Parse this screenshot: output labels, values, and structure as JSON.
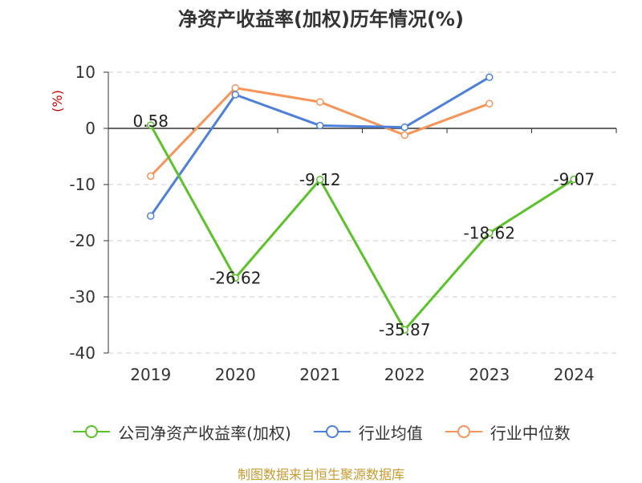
{
  "chart_data": {
    "type": "line",
    "title": "净资产收益率(加权)历年情况(%)",
    "ylabel": "(%)",
    "categories": [
      "2019",
      "2020",
      "2021",
      "2022",
      "2023",
      "2024"
    ],
    "ylim": [
      -40,
      10
    ],
    "yticks": [
      10,
      0,
      -10,
      -20,
      -30,
      -40
    ],
    "grid": true,
    "legend_position": "bottom",
    "series": [
      {
        "name": "公司净资产收益率(加权)",
        "color": "#5cc229",
        "values": [
          0.58,
          -26.62,
          -9.12,
          -35.87,
          -18.62,
          -9.07
        ],
        "labels": [
          "0.58",
          "-26.62",
          "-9.12",
          "-35.87",
          "-18.62",
          "-9.07"
        ]
      },
      {
        "name": "行业均值",
        "color": "#4e80db",
        "values": [
          -15.6,
          6.0,
          0.5,
          0.2,
          9.1,
          null
        ]
      },
      {
        "name": "行业中位数",
        "color": "#f6945a",
        "values": [
          -8.5,
          7.2,
          4.7,
          -1.2,
          4.4,
          null
        ]
      }
    ]
  },
  "footer": {
    "source": "制图数据来自恒生聚源数据库"
  }
}
